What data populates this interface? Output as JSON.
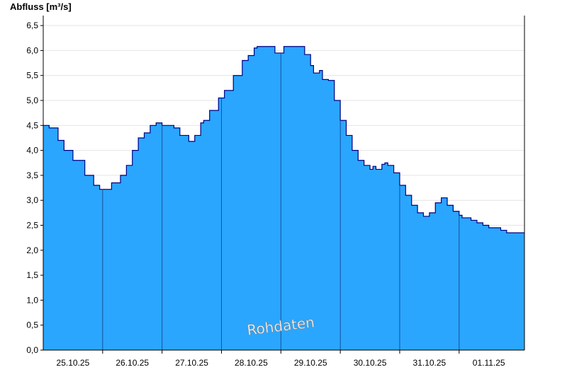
{
  "chart_data": {
    "type": "area",
    "ylabel": "Abfluss [m³/s]",
    "ylim": [
      0,
      6.7
    ],
    "yticks": [
      "0,0",
      "0,5",
      "1,0",
      "1,5",
      "2,0",
      "2,5",
      "3,0",
      "3,5",
      "4,0",
      "4,5",
      "5,0",
      "5,5",
      "6,0",
      "6,5"
    ],
    "ytick_values": [
      0,
      0.5,
      1,
      1.5,
      2,
      2.5,
      3,
      3.5,
      4,
      4.5,
      5,
      5.5,
      6,
      6.5
    ],
    "xlim": [
      0,
      8.1
    ],
    "xtick_labels": [
      "25.10.25",
      "26.10.25",
      "27.10.25",
      "28.10.25",
      "29.10.25",
      "30.10.25",
      "31.10.25",
      "01.11.25"
    ],
    "day_boundaries": [
      1,
      2,
      3,
      4,
      5,
      6,
      7
    ],
    "grid": true,
    "fill_color": "#2aa6ff",
    "line_color": "#000080",
    "watermark": "Rohdaten",
    "series": [
      {
        "x": [
          0,
          0.1,
          0.25,
          0.35,
          0.5,
          0.7,
          0.85,
          0.95,
          1.0,
          1.15,
          1.3,
          1.4,
          1.5,
          1.6,
          1.7,
          1.8,
          1.9,
          2.0,
          2.1,
          2.2,
          2.3,
          2.45,
          2.55,
          2.65,
          2.7,
          2.8,
          2.95,
          3.0,
          3.05,
          3.2,
          3.35,
          3.45,
          3.55,
          3.6,
          3.7,
          3.9,
          4.0,
          4.05,
          4.2,
          4.4,
          4.5,
          4.55,
          4.65,
          4.7,
          4.8,
          4.9,
          5.0,
          5.1,
          5.2,
          5.3,
          5.4,
          5.5,
          5.55,
          5.6,
          5.7,
          5.75,
          5.8,
          5.9,
          6.0,
          6.1,
          6.2,
          6.3,
          6.4,
          6.5,
          6.6,
          6.7,
          6.8,
          6.9,
          7.0,
          7.05,
          7.1,
          7.2,
          7.3,
          7.4,
          7.5,
          7.6,
          7.7,
          7.8,
          7.9,
          8.0,
          8.1
        ],
        "y": [
          4.5,
          4.45,
          4.2,
          4.0,
          3.8,
          3.5,
          3.3,
          3.22,
          3.22,
          3.35,
          3.5,
          3.7,
          4.0,
          4.25,
          4.35,
          4.5,
          4.55,
          4.5,
          4.5,
          4.45,
          4.3,
          4.18,
          4.3,
          4.55,
          4.6,
          4.8,
          5.05,
          5.05,
          5.2,
          5.5,
          5.8,
          5.9,
          6.05,
          6.08,
          6.08,
          5.95,
          5.95,
          6.08,
          6.08,
          5.92,
          5.7,
          5.55,
          5.6,
          5.42,
          5.4,
          5.0,
          4.6,
          4.3,
          4.0,
          3.8,
          3.7,
          3.62,
          3.68,
          3.62,
          3.72,
          3.75,
          3.7,
          3.55,
          3.3,
          3.1,
          2.9,
          2.75,
          2.68,
          2.75,
          2.95,
          3.05,
          2.9,
          2.78,
          2.7,
          2.65,
          2.65,
          2.6,
          2.55,
          2.5,
          2.45,
          2.45,
          2.4,
          2.35,
          2.35,
          2.35,
          2.35
        ]
      }
    ]
  }
}
